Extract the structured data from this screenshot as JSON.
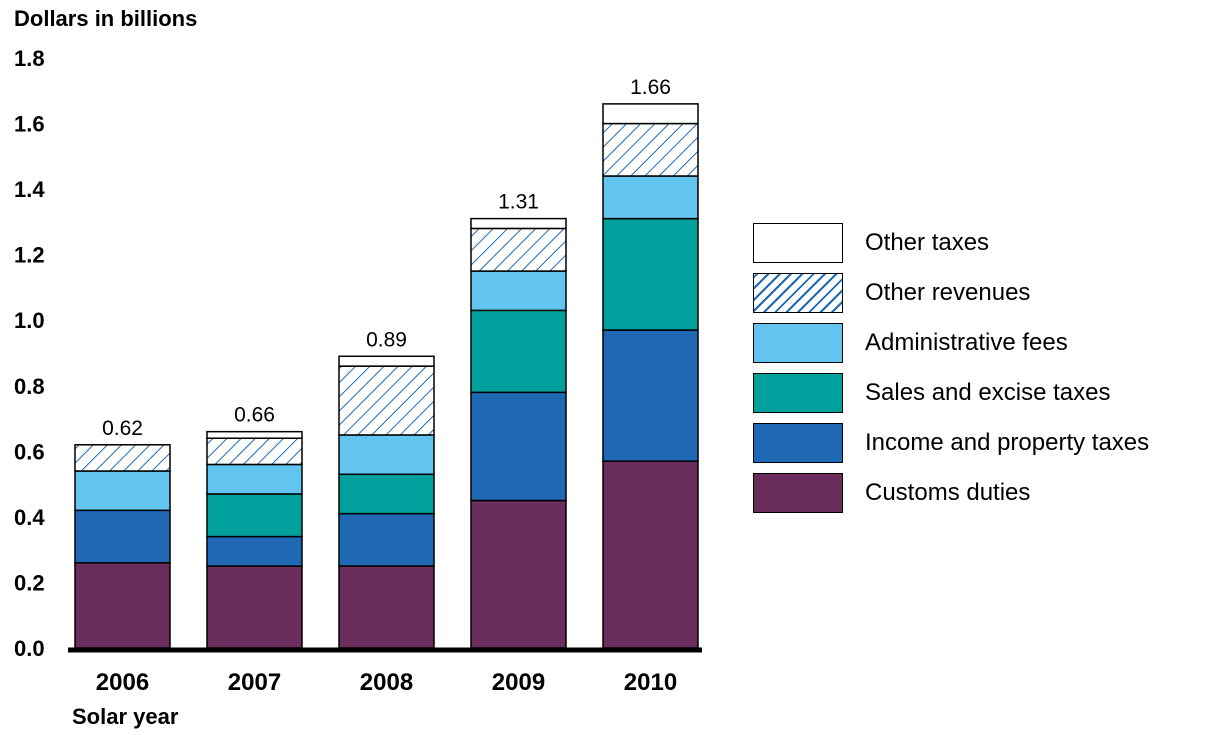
{
  "chart_data": {
    "type": "bar",
    "stacked": true,
    "ylabel": "Dollars in billions",
    "xlabel": "Solar year",
    "ylim": [
      0,
      1.8
    ],
    "yticks": [
      "0.0",
      "0.2",
      "0.4",
      "0.6",
      "0.8",
      "1.0",
      "1.2",
      "1.4",
      "1.6",
      "1.8"
    ],
    "categories": [
      "2006",
      "2007",
      "2008",
      "2009",
      "2010"
    ],
    "totals": [
      "0.62",
      "0.66",
      "0.89",
      "1.31",
      "1.66"
    ],
    "series": [
      {
        "name": "Customs duties",
        "color": "#6b2d5c",
        "pattern": "solid",
        "values": [
          0.26,
          0.25,
          0.25,
          0.45,
          0.57
        ]
      },
      {
        "name": "Income and property taxes",
        "color": "#1f69b4",
        "pattern": "solid",
        "values": [
          0.16,
          0.09,
          0.16,
          0.33,
          0.4
        ]
      },
      {
        "name": "Sales and excise taxes",
        "color": "#00a19c",
        "pattern": "solid",
        "values": [
          0.0,
          0.13,
          0.12,
          0.25,
          0.34
        ]
      },
      {
        "name": "Administrative fees",
        "color": "#63c5ef",
        "pattern": "solid",
        "values": [
          0.12,
          0.09,
          0.12,
          0.12,
          0.13
        ]
      },
      {
        "name": "Other revenues",
        "color": "#1f69b4",
        "pattern": "hatch",
        "values": [
          0.08,
          0.08,
          0.21,
          0.13,
          0.16
        ]
      },
      {
        "name": "Other taxes",
        "color": "#ffffff",
        "pattern": "solid",
        "values": [
          0.0,
          0.02,
          0.03,
          0.03,
          0.06
        ]
      }
    ],
    "legend_placement": "right",
    "grid": false
  }
}
